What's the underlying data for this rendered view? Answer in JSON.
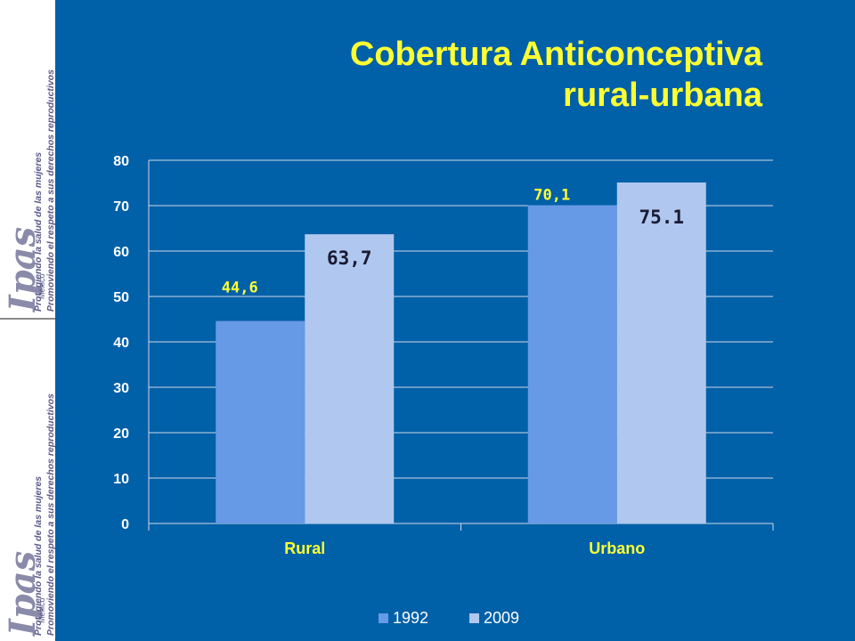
{
  "sidebar": {
    "logo_text": "Ipas",
    "logo_sub": "México",
    "tagline_1": "Protegiendo la salud de las mujeres",
    "tagline_2": "Promoviendo el respeto a sus derechos reproductivos"
  },
  "title": {
    "line1": "Cobertura Anticonceptiva",
    "line2": "rural-urbana"
  },
  "colors": {
    "background": "#0060a8",
    "title": "#ffff33",
    "series_1992": "#6699e6",
    "series_2009": "#b0c8f0",
    "label_yellow": "#ffff33",
    "label_dark": "#1a1a33"
  },
  "chart_data": {
    "type": "bar",
    "categories": [
      "Rural",
      "Urbano"
    ],
    "series": [
      {
        "name": "1992",
        "values": [
          44.6,
          70.1
        ],
        "labels": [
          "44,6",
          "70,1"
        ]
      },
      {
        "name": "2009",
        "values": [
          63.7,
          75.1
        ],
        "labels": [
          "63,7",
          "75.1"
        ]
      }
    ],
    "ylim": [
      0,
      80
    ],
    "yticks": [
      0,
      10,
      20,
      30,
      40,
      50,
      60,
      70,
      80
    ],
    "grid": true,
    "legend": "bottom"
  }
}
